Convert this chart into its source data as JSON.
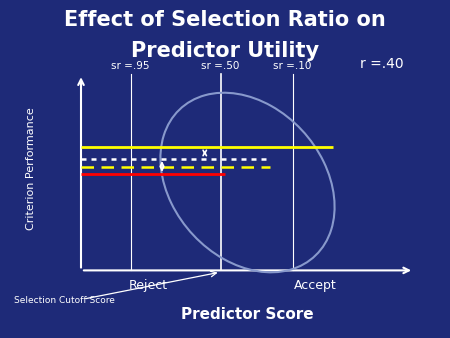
{
  "title_line1": "Effect of Selection Ratio on",
  "title_line2": "Predictor Utility",
  "bg_color": "#1E2A78",
  "text_color": "#ffffff",
  "title_fontsize": 15,
  "ylabel": "Criterion Performance",
  "xlabel": "Predictor Score",
  "sr_labels": [
    "sr =.95",
    "sr =.50",
    "sr =.10"
  ],
  "r_label": "r =.40",
  "reject_label": "Reject",
  "accept_label": "Accept",
  "cutoff_label": "Selection Cutoff Score",
  "ellipse_color": "#8899cc",
  "line_yellow_color": "yellow",
  "line_dotted_color": "white",
  "line_dashed_color": "yellow",
  "line_red_color": "red",
  "arrow_color": "white"
}
